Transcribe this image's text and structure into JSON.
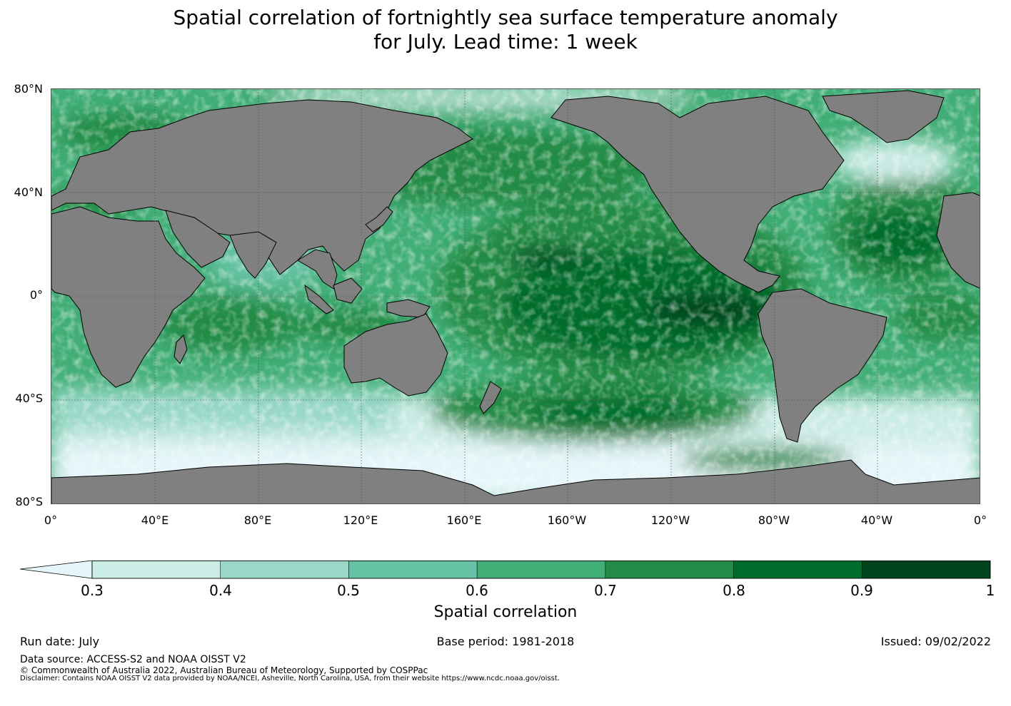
{
  "title_line1": "Spatial correlation of fortnightly sea surface temperature anomaly",
  "title_line2": "for July. Lead time: 1 week",
  "map": {
    "lat_labels": [
      "80°N",
      "40°N",
      "0°",
      "40°S",
      "80°S"
    ],
    "lon_labels": [
      "0°",
      "40°E",
      "80°E",
      "120°E",
      "160°E",
      "160°W",
      "120°W",
      "80°W",
      "40°W",
      "0°"
    ],
    "colors": {
      "land": "#808080",
      "ice": "#e5f5f9",
      "grid": "#555555",
      "coast": "#000000"
    }
  },
  "colorbar": {
    "label": "Spatial correlation",
    "ticks": [
      "0.3",
      "0.4",
      "0.5",
      "0.6",
      "0.7",
      "0.8",
      "0.9",
      "1"
    ],
    "levels": [
      0.3,
      0.4,
      0.5,
      0.6,
      0.7,
      0.8,
      0.9,
      1.0
    ],
    "colors": [
      "#ccece6",
      "#99d8c9",
      "#66c2a4",
      "#41ae76",
      "#238b45",
      "#006d2c",
      "#00441b"
    ],
    "under_color": "#e5f5f9"
  },
  "footer": {
    "run_date": "Run date: July",
    "base_period": "Base period: 1981-2018",
    "issued": "Issued: 09/02/2022",
    "data_source": "Data source: ACCESS-S2 and NOAA OISST V2",
    "copyright": "© Commonwealth of Australia 2022, Australian Bureau of Meteorology, Supported by COSPPac",
    "disclaimer": "Disclaimer: Contains NOAA OISST V2 data provided by NOAA/NCEI, Asheville, North Carolina, USA, from their website https://www.ncdc.noaa.gov/oisst."
  }
}
